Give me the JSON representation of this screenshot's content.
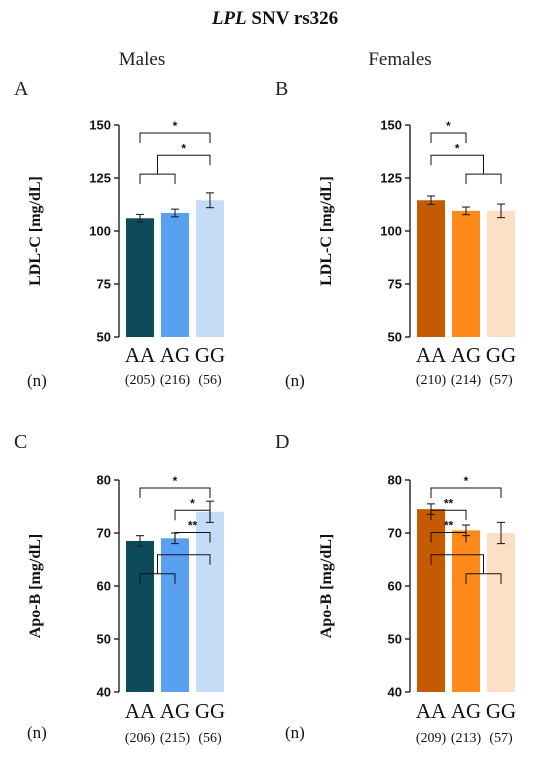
{
  "figure": {
    "title_gene": "LPL",
    "title_rest": " SNV rs326",
    "groups": {
      "males": "Males",
      "females": "Females"
    },
    "n_label": "(n)"
  },
  "chart_data": [
    {
      "type": "bar",
      "panel": "A",
      "categories": [
        "AA",
        "AG",
        "GG"
      ],
      "values": [
        106,
        108.5,
        114.5
      ],
      "errors": [
        1.8,
        1.8,
        3.5
      ],
      "colors": [
        "#0d4a5a",
        "#5aa0f0",
        "#c4dcf5"
      ],
      "n": [
        "(205)",
        "(216)",
        "(56)"
      ],
      "ylabel": "LDL-C [mg/dL]",
      "ylim": [
        50,
        150
      ],
      "yticks": [
        "50",
        "75",
        "100",
        "125",
        "150"
      ],
      "significance": [
        {
          "type": "pair",
          "from": 0,
          "to": 2,
          "label": "*"
        },
        {
          "type": "group_left",
          "group": [
            0,
            1
          ],
          "to": 2,
          "label": "*"
        }
      ]
    },
    {
      "type": "bar",
      "panel": "B",
      "categories": [
        "AA",
        "AG",
        "GG"
      ],
      "values": [
        114.5,
        109.5,
        109.5
      ],
      "errors": [
        2,
        1.8,
        3.2
      ],
      "colors": [
        "#c55a00",
        "#ff8a1a",
        "#fde0c4"
      ],
      "n": [
        "(210)",
        "(214)",
        "(57)"
      ],
      "ylabel": "LDL-C [mg/dL]",
      "ylim": [
        50,
        150
      ],
      "yticks": [
        "50",
        "75",
        "100",
        "125",
        "150"
      ],
      "significance": [
        {
          "type": "pair",
          "from": 0,
          "to": 1,
          "label": "*"
        },
        {
          "type": "group_right",
          "from": 0,
          "group": [
            1,
            2
          ],
          "label": "*"
        }
      ]
    },
    {
      "type": "bar",
      "panel": "C",
      "categories": [
        "AA",
        "AG",
        "GG"
      ],
      "values": [
        68.5,
        69,
        74
      ],
      "errors": [
        1,
        1,
        2
      ],
      "colors": [
        "#0d4a5a",
        "#5aa0f0",
        "#c4dcf5"
      ],
      "n": [
        "(206)",
        "(215)",
        "(56)"
      ],
      "ylabel": "Apo-B [mg/dL]",
      "ylim": [
        40,
        80
      ],
      "yticks": [
        "40",
        "50",
        "60",
        "70",
        "80"
      ],
      "significance": [
        {
          "type": "pair",
          "from": 0,
          "to": 2,
          "label": "*"
        },
        {
          "type": "pair",
          "from": 1,
          "to": 2,
          "label": "*"
        },
        {
          "type": "pair",
          "from": 1,
          "to": 2,
          "label": "**"
        },
        {
          "type": "group_left",
          "group": [
            0,
            1
          ],
          "to": 2,
          "label": ""
        }
      ]
    },
    {
      "type": "bar",
      "panel": "D",
      "categories": [
        "AA",
        "AG",
        "GG"
      ],
      "values": [
        74.5,
        70.5,
        70
      ],
      "errors": [
        1,
        1,
        2
      ],
      "colors": [
        "#c55a00",
        "#ff8a1a",
        "#fde0c4"
      ],
      "n": [
        "(209)",
        "(213)",
        "(57)"
      ],
      "ylabel": "Apo-B [mg/dL]",
      "ylim": [
        40,
        80
      ],
      "yticks": [
        "40",
        "50",
        "60",
        "70",
        "80"
      ],
      "significance": [
        {
          "type": "pair",
          "from": 0,
          "to": 2,
          "label": "*"
        },
        {
          "type": "pair",
          "from": 0,
          "to": 1,
          "label": "**"
        },
        {
          "type": "pair",
          "from": 0,
          "to": 1,
          "label": "**"
        },
        {
          "type": "group_right",
          "from": 0,
          "group": [
            1,
            2
          ],
          "label": ""
        }
      ]
    }
  ]
}
